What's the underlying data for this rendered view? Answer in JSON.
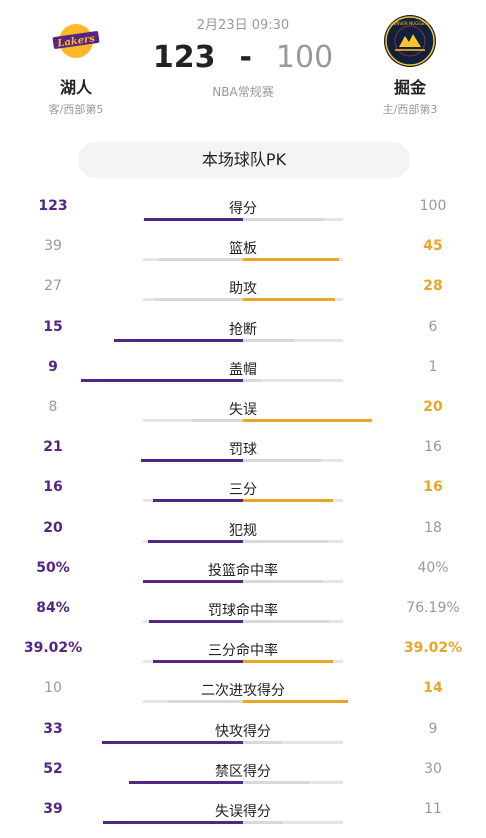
{
  "header": {
    "date": "2月23日 09:30",
    "home": {
      "name": "湖人",
      "sub": "客/西部第5",
      "score": "123",
      "logo_text": "Lakers",
      "logo_icon": "lakers-logo-icon"
    },
    "away": {
      "name": "掘金",
      "sub": "主/西部第3",
      "score": "100",
      "logo_text": "DENVER NUGGETS",
      "logo_icon": "nuggets-logo-icon"
    },
    "separator": "-",
    "league": "NBA常规赛"
  },
  "colors": {
    "home": "#552583",
    "away": "#e7a52a",
    "muted": "#999999",
    "track": "#e6e6e6"
  },
  "pk_title": "本场球队PK",
  "stats": [
    {
      "label": "得分",
      "left": "123",
      "right": "100",
      "winner": "left",
      "left_share": 0.551,
      "right_share": 0.449
    },
    {
      "label": "篮板",
      "left": "39",
      "right": "45",
      "winner": "right",
      "left_share": 0.464,
      "right_share": 0.536
    },
    {
      "label": "助攻",
      "left": "27",
      "right": "28",
      "winner": "right",
      "left_share": 0.491,
      "right_share": 0.509
    },
    {
      "label": "抢断",
      "left": "15",
      "right": "6",
      "winner": "left",
      "left_share": 0.714,
      "right_share": 0.286
    },
    {
      "label": "盖帽",
      "left": "9",
      "right": "1",
      "winner": "left",
      "left_share": 0.9,
      "right_share": 0.1
    },
    {
      "label": "失误",
      "left": "8",
      "right": "20",
      "winner": "right",
      "left_share": 0.286,
      "right_share": 0.714
    },
    {
      "label": "罚球",
      "left": "21",
      "right": "16",
      "winner": "left",
      "left_share": 0.568,
      "right_share": 0.432
    },
    {
      "label": "三分",
      "left": "16",
      "right": "16",
      "winner": "both",
      "left_share": 0.5,
      "right_share": 0.5
    },
    {
      "label": "犯规",
      "left": "20",
      "right": "18",
      "winner": "left",
      "left_share": 0.526,
      "right_share": 0.474
    },
    {
      "label": "投篮命中率",
      "left": "50%",
      "right": "40%",
      "winner": "left",
      "left_share": 0.556,
      "right_share": 0.444
    },
    {
      "label": "罚球命中率",
      "left": "84%",
      "right": "76.19%",
      "winner": "left",
      "left_share": 0.524,
      "right_share": 0.476
    },
    {
      "label": "三分命中率",
      "left": "39.02%",
      "right": "39.02%",
      "winner": "both",
      "left_share": 0.5,
      "right_share": 0.5
    },
    {
      "label": "二次进攻得分",
      "left": "10",
      "right": "14",
      "winner": "right",
      "left_share": 0.417,
      "right_share": 0.583
    },
    {
      "label": "快攻得分",
      "left": "33",
      "right": "9",
      "winner": "left",
      "left_share": 0.786,
      "right_share": 0.214
    },
    {
      "label": "禁区得分",
      "left": "52",
      "right": "30",
      "winner": "left",
      "left_share": 0.634,
      "right_share": 0.366
    },
    {
      "label": "失误得分",
      "left": "39",
      "right": "11",
      "winner": "left",
      "left_share": 0.78,
      "right_share": 0.22
    }
  ]
}
